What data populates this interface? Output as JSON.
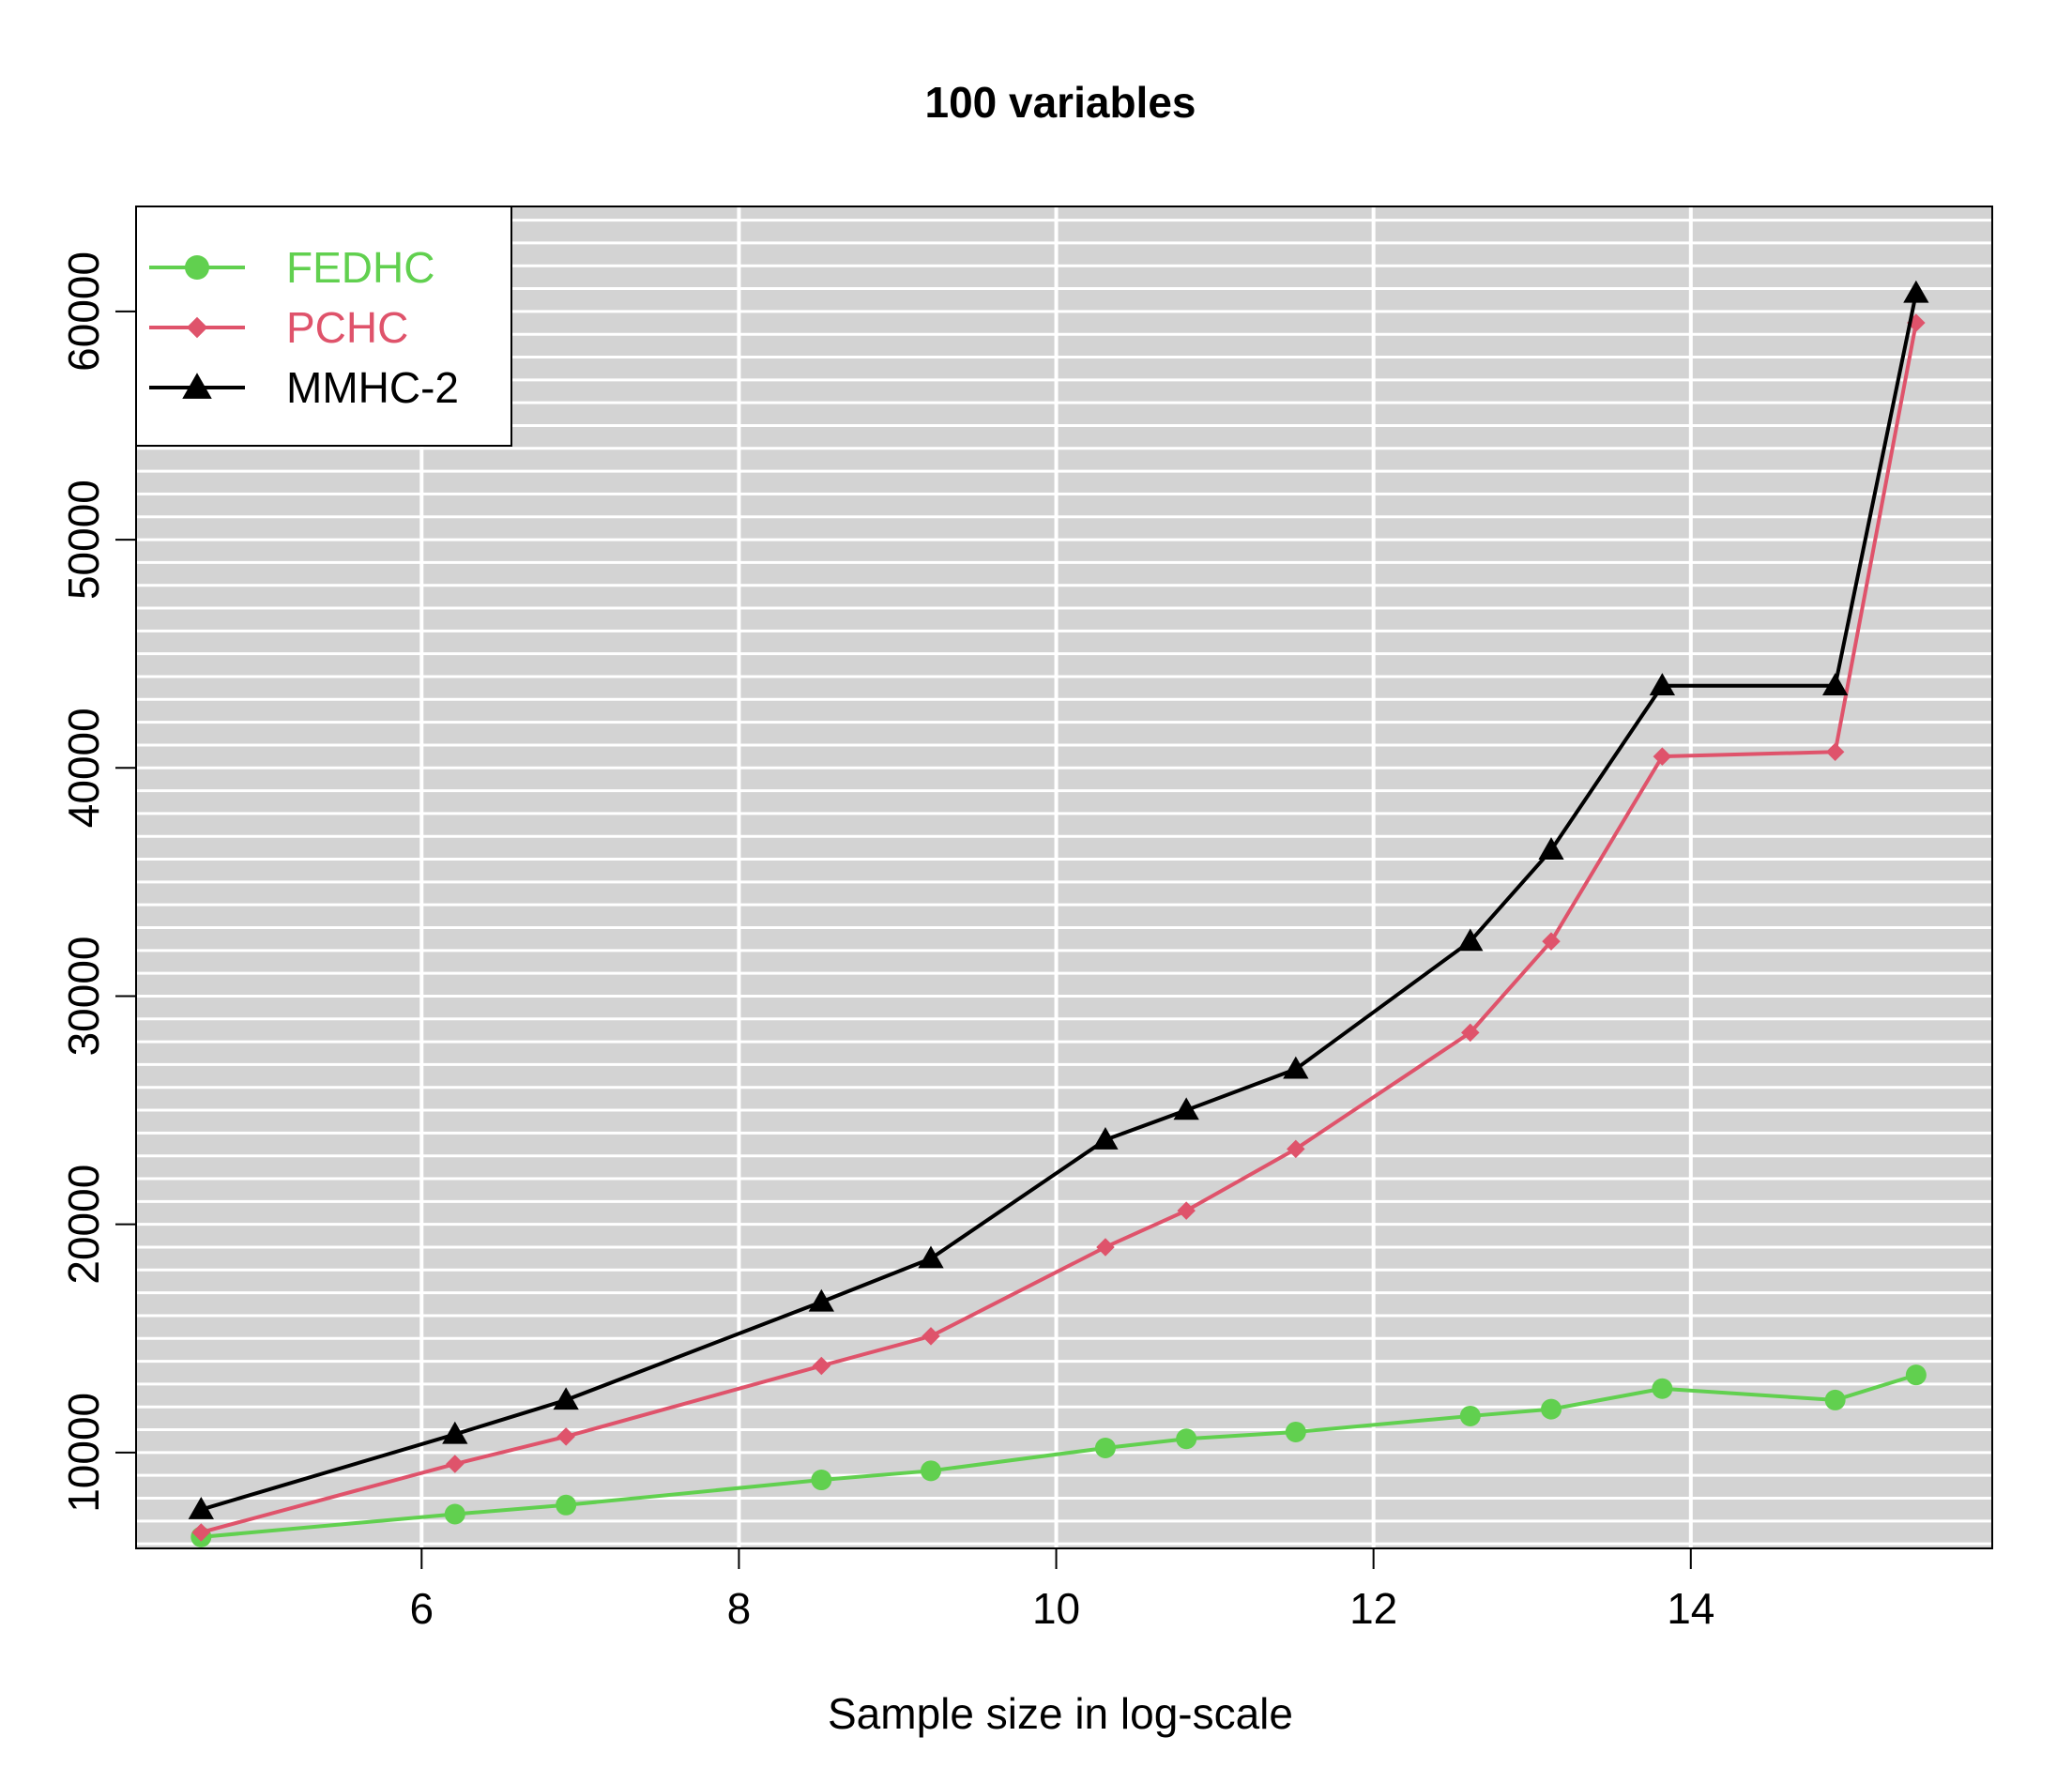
{
  "chart_data": {
    "type": "line",
    "title": "100 variables",
    "xlabel": "Sample size in log-scale",
    "ylabel": "",
    "xlim": [
      4.2,
      15.9
    ],
    "ylim": [
      5800,
      64600
    ],
    "x_ticks": [
      6,
      8,
      10,
      12,
      14
    ],
    "y_ticks": [
      10000,
      20000,
      30000,
      40000,
      50000,
      60000
    ],
    "grid": true,
    "background": "#d3d3d3",
    "grid_color": "#ffffff",
    "legend_position": "top-left",
    "x": [
      4.61,
      6.21,
      6.91,
      8.52,
      9.21,
      10.31,
      10.82,
      11.51,
      12.61,
      13.12,
      13.82,
      14.91,
      15.42
    ],
    "series": [
      {
        "name": "FEDHC",
        "color": "#61d04f",
        "marker": "circle",
        "values": [
          6300,
          7300,
          7700,
          8800,
          9200,
          10200,
          10600,
          10900,
          11600,
          11900,
          12800,
          12300,
          13400
        ]
      },
      {
        "name": "PCHC",
        "color": "#df536b",
        "marker": "diamond",
        "values": [
          6500,
          9500,
          10700,
          13800,
          15100,
          19000,
          20600,
          23300,
          28400,
          32400,
          40500,
          40700,
          59500
        ]
      },
      {
        "name": "MMHC-2",
        "color": "#000000",
        "marker": "triangle",
        "values": [
          7500,
          10800,
          12300,
          16600,
          18500,
          23700,
          25000,
          26800,
          32400,
          36400,
          43600,
          43600,
          60800
        ]
      }
    ]
  }
}
